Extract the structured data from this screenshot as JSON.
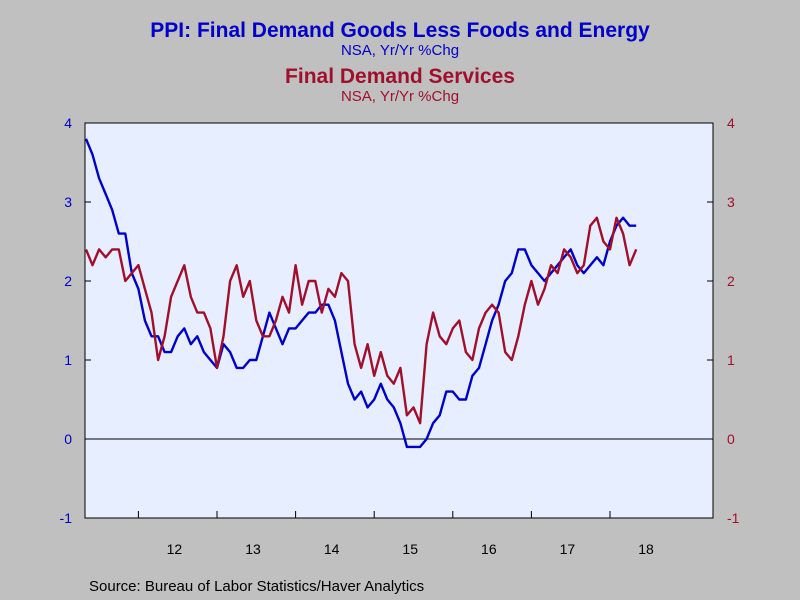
{
  "titles": {
    "series1_title": "PPI: Final Demand Goods Less Foods and Energy",
    "series1_subtitle": "NSA, Yr/Yr %Chg",
    "series2_title": "Final Demand Services",
    "series2_subtitle": "NSA, Yr/Yr %Chg"
  },
  "source": "Source:  Bureau of Labor Statistics/Haver Analytics",
  "colors": {
    "background": "#c0c0c0",
    "plot_area": "#e6eeff",
    "series1": "#0000c8",
    "series2": "#a0102c"
  },
  "chart_data": {
    "type": "line",
    "x_start": "2011-05",
    "frequency": "monthly",
    "x_tick_labels": [
      "12",
      "13",
      "14",
      "15",
      "16",
      "17",
      "18"
    ],
    "ylim": [
      -1,
      4
    ],
    "y_ticks": [
      -1,
      0,
      1,
      2,
      3,
      4
    ],
    "y_tick_labels_left": [
      "-1",
      "0",
      "1",
      "2",
      "3",
      "4"
    ],
    "y_tick_labels_right": [
      "-1",
      "0",
      "1",
      "2",
      "3",
      "4"
    ],
    "zero_line": true,
    "grid": false,
    "series": [
      {
        "name": "PPI: Final Demand Goods Less Foods and Energy",
        "axis": "left",
        "values": [
          3.8,
          3.6,
          3.3,
          3.1,
          2.9,
          2.6,
          2.6,
          2.1,
          1.9,
          1.5,
          1.3,
          1.3,
          1.1,
          1.1,
          1.3,
          1.4,
          1.2,
          1.3,
          1.1,
          1.0,
          0.9,
          1.2,
          1.1,
          0.9,
          0.9,
          1.0,
          1.0,
          1.3,
          1.6,
          1.4,
          1.2,
          1.4,
          1.4,
          1.5,
          1.6,
          1.6,
          1.7,
          1.7,
          1.5,
          1.1,
          0.7,
          0.5,
          0.6,
          0.4,
          0.5,
          0.7,
          0.5,
          0.4,
          0.2,
          -0.1,
          -0.1,
          -0.1,
          0.0,
          0.2,
          0.3,
          0.6,
          0.6,
          0.5,
          0.5,
          0.8,
          0.9,
          1.2,
          1.5,
          1.7,
          2.0,
          2.1,
          2.4,
          2.4,
          2.2,
          2.1,
          2.0,
          2.1,
          2.2,
          2.3,
          2.4,
          2.2,
          2.1,
          2.2,
          2.3,
          2.2,
          2.5,
          2.7,
          2.8,
          2.7,
          2.7
        ]
      },
      {
        "name": "Final Demand Services",
        "axis": "right",
        "values": [
          2.4,
          2.2,
          2.4,
          2.3,
          2.4,
          2.4,
          2.0,
          2.1,
          2.2,
          1.9,
          1.6,
          1.0,
          1.3,
          1.8,
          2.0,
          2.2,
          1.8,
          1.6,
          1.6,
          1.4,
          0.9,
          1.3,
          2.0,
          2.2,
          1.8,
          2.0,
          1.5,
          1.3,
          1.3,
          1.5,
          1.8,
          1.6,
          2.2,
          1.7,
          2.0,
          2.0,
          1.6,
          1.9,
          1.8,
          2.1,
          2.0,
          1.2,
          0.9,
          1.2,
          0.8,
          1.1,
          0.8,
          0.7,
          0.9,
          0.3,
          0.4,
          0.2,
          1.2,
          1.6,
          1.3,
          1.2,
          1.4,
          1.5,
          1.1,
          1.0,
          1.4,
          1.6,
          1.7,
          1.6,
          1.1,
          1.0,
          1.3,
          1.7,
          2.0,
          1.7,
          1.9,
          2.2,
          2.1,
          2.4,
          2.3,
          2.1,
          2.2,
          2.7,
          2.8,
          2.5,
          2.4,
          2.8,
          2.6,
          2.2,
          2.4
        ]
      }
    ]
  }
}
